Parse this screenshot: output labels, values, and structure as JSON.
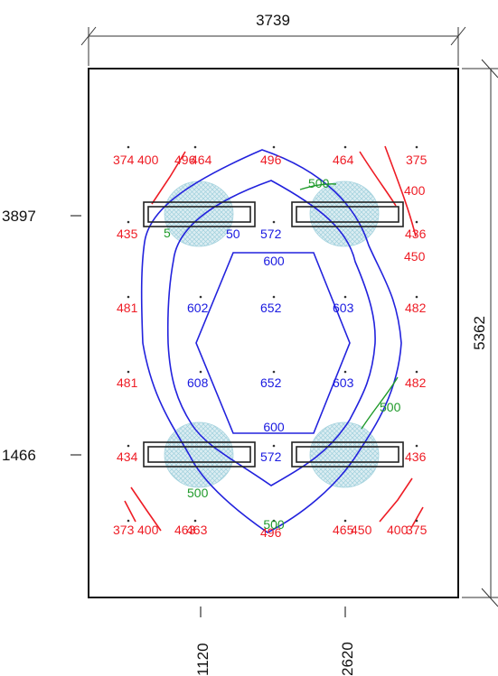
{
  "dimensions": {
    "width": "3739",
    "height": "5362",
    "y_upper": "3897",
    "y_lower": "1466",
    "x_left": "1120",
    "x_right": "2620"
  },
  "colors": {
    "low_values": "#ee1c25",
    "high_values": "#1a1ae0",
    "contour_500": "#1f9a2a",
    "contour_lines": "#2222dd",
    "luminaire_pattern": "#9fd0dc"
  },
  "contour_labels": {
    "c600_top": "600",
    "c600_bottom": "600",
    "c500_top": "500",
    "c500_right": "500",
    "c500_bottom_left": "500",
    "c500_bottom_center": "500",
    "c500_left_partial": "5",
    "c400_top_left": "400",
    "c400_right": "400",
    "c400_bottom_left": "400",
    "c400_bottom_right": "400",
    "c450_right": "450",
    "c450_bottom": "450"
  },
  "grid_values": {
    "r1": [
      "374",
      "496",
      "464",
      "496",
      "464",
      "375"
    ],
    "r2": [
      "435",
      "50",
      "572",
      "436"
    ],
    "r3": [
      "481",
      "602",
      "652",
      "603",
      "482"
    ],
    "r4": [
      "481",
      "608",
      "652",
      "603",
      "482"
    ],
    "r5": [
      "434",
      "572",
      "436"
    ],
    "r6": [
      "373",
      "463",
      "463",
      "496",
      "465",
      "375"
    ]
  }
}
